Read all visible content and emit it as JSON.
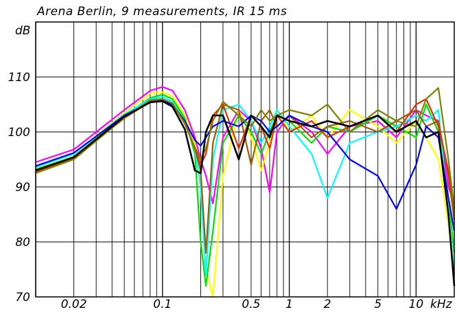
{
  "chart_data": {
    "type": "line",
    "title": "Arena Berlin, 9 measurements, IR 15 ms",
    "ylabel": "dB",
    "xunit": "kHz",
    "xscale": "log",
    "xlim": [
      0.01,
      20
    ],
    "ylim": [
      70,
      120
    ],
    "grid": true,
    "ytick_values": [
      70,
      80,
      90,
      100,
      110
    ],
    "ytick_labels": [
      "70",
      "80",
      "90",
      "100",
      "110"
    ],
    "xtick_values": [
      0.02,
      0.1,
      0.5,
      1,
      2,
      5,
      10
    ],
    "xtick_labels": [
      "0.02",
      "0.1",
      "0.5",
      "1",
      "2",
      "5",
      "10"
    ],
    "series_colors": [
      "#ff00ff",
      "#ffff00",
      "#00e000",
      "#00ffff",
      "#a05a00",
      "#e03000",
      "#0000ff",
      "#808000",
      "#000000"
    ],
    "series": [
      {
        "color": "#ff00ff",
        "x": [
          0.01,
          0.02,
          0.05,
          0.08,
          0.1,
          0.12,
          0.15,
          0.18,
          0.2,
          0.22,
          0.25,
          0.3,
          0.4,
          0.5,
          0.6,
          0.7,
          0.8,
          1,
          1.5,
          2,
          3,
          5,
          7,
          10,
          12,
          15,
          18,
          20
        ],
        "y": [
          94.5,
          96.8,
          104,
          107.5,
          108.2,
          107.5,
          104,
          99,
          95,
          92,
          87,
          99,
          104,
          102,
          97,
          89,
          100,
          103,
          100,
          96,
          101,
          102,
          99,
          104,
          103,
          102,
          90,
          87
        ]
      },
      {
        "color": "#ffff00",
        "x": [
          0.01,
          0.02,
          0.05,
          0.08,
          0.1,
          0.12,
          0.15,
          0.18,
          0.2,
          0.22,
          0.25,
          0.3,
          0.4,
          0.5,
          0.6,
          0.7,
          0.8,
          1,
          1.5,
          2,
          3,
          5,
          7,
          10,
          12,
          15,
          18,
          20
        ],
        "y": [
          93.5,
          96,
          103.5,
          107,
          107.2,
          106.5,
          103,
          98,
          92,
          75,
          70,
          92,
          104,
          99,
          93,
          98,
          104,
          100,
          103,
          99,
          104,
          101,
          98,
          102,
          99,
          95,
          83,
          75
        ]
      },
      {
        "color": "#00e000",
        "x": [
          0.01,
          0.02,
          0.05,
          0.08,
          0.1,
          0.12,
          0.15,
          0.18,
          0.2,
          0.22,
          0.25,
          0.3,
          0.4,
          0.5,
          0.6,
          0.7,
          0.8,
          1,
          1.5,
          2,
          3,
          5,
          7,
          10,
          12,
          15,
          18,
          20
        ],
        "y": [
          93.2,
          95.5,
          103,
          106.2,
          106.8,
          106,
          102.5,
          96,
          80,
          72,
          82,
          98,
          103,
          100,
          96,
          100,
          103,
          102,
          98,
          101,
          100,
          103,
          101,
          99,
          105,
          100,
          88,
          78
        ]
      },
      {
        "color": "#00ffff",
        "x": [
          0.01,
          0.02,
          0.05,
          0.08,
          0.1,
          0.12,
          0.15,
          0.18,
          0.2,
          0.22,
          0.25,
          0.3,
          0.4,
          0.5,
          0.6,
          0.7,
          0.8,
          1,
          1.5,
          2,
          3,
          5,
          7,
          10,
          12,
          15,
          18,
          20
        ],
        "y": [
          93.6,
          96,
          103.2,
          106,
          106.4,
          105.5,
          102,
          97,
          90,
          74,
          95,
          104,
          105,
          102,
          98,
          101,
          104,
          101,
          96,
          88,
          98,
          100,
          101,
          103,
          102,
          104,
          85,
          74
        ]
      },
      {
        "color": "#a05a00",
        "x": [
          0.01,
          0.02,
          0.05,
          0.08,
          0.1,
          0.12,
          0.15,
          0.18,
          0.2,
          0.22,
          0.25,
          0.3,
          0.4,
          0.5,
          0.6,
          0.7,
          0.8,
          1,
          1.5,
          2,
          3,
          5,
          7,
          10,
          12,
          15,
          18,
          20
        ],
        "y": [
          92.6,
          95.2,
          102.5,
          105.5,
          105.8,
          105,
          101.5,
          97,
          93,
          78,
          98,
          105,
          104,
          94,
          102,
          104,
          101,
          103,
          99,
          101,
          102,
          100,
          102,
          104,
          101,
          102,
          92,
          84
        ]
      },
      {
        "color": "#e03000",
        "x": [
          0.01,
          0.02,
          0.05,
          0.08,
          0.1,
          0.12,
          0.15,
          0.18,
          0.2,
          0.22,
          0.25,
          0.3,
          0.4,
          0.5,
          0.6,
          0.7,
          0.8,
          1,
          1.5,
          2,
          3,
          5,
          7,
          10,
          12,
          15,
          18,
          20
        ],
        "y": [
          92.8,
          95.4,
          102.8,
          105.6,
          105.9,
          105.1,
          101.8,
          97,
          94,
          96,
          103,
          105,
          97,
          103,
          101,
          97,
          103,
          100,
          102,
          99,
          101,
          103,
          100,
          105,
          106,
          101,
          93,
          86
        ]
      },
      {
        "color": "#0000ff",
        "x": [
          0.01,
          0.02,
          0.05,
          0.08,
          0.1,
          0.12,
          0.15,
          0.18,
          0.2,
          0.22,
          0.25,
          0.3,
          0.4,
          0.5,
          0.6,
          0.7,
          0.8,
          1,
          1.5,
          2,
          3,
          5,
          7,
          10,
          12,
          15,
          18,
          20
        ],
        "y": [
          93.8,
          96.2,
          103,
          105.4,
          105.7,
          105,
          102,
          98.5,
          97.5,
          99,
          101,
          102,
          101,
          103,
          102,
          100,
          101,
          103,
          101,
          100,
          95,
          92,
          86,
          94,
          101,
          99,
          88,
          82
        ]
      },
      {
        "color": "#808000",
        "x": [
          0.01,
          0.02,
          0.05,
          0.08,
          0.1,
          0.12,
          0.15,
          0.18,
          0.2,
          0.22,
          0.25,
          0.3,
          0.4,
          0.5,
          0.6,
          0.7,
          0.8,
          1,
          1.5,
          2,
          3,
          5,
          7,
          10,
          12,
          15,
          18,
          20
        ],
        "y": [
          92.5,
          95,
          102.6,
          105.8,
          106,
          105.2,
          101.6,
          97.2,
          95,
          97,
          102,
          105.5,
          103,
          101,
          104,
          102,
          103,
          104,
          103,
          105,
          100,
          104,
          102,
          101,
          106,
          108,
          95,
          86
        ]
      },
      {
        "color": "#000000",
        "x": [
          0.01,
          0.02,
          0.05,
          0.08,
          0.1,
          0.12,
          0.15,
          0.18,
          0.2,
          0.22,
          0.25,
          0.3,
          0.4,
          0.5,
          0.6,
          0.7,
          0.8,
          1,
          1.5,
          2,
          3,
          5,
          7,
          10,
          12,
          15,
          18,
          20
        ],
        "y": [
          93,
          95.4,
          102.8,
          105.4,
          105.6,
          104.6,
          100.5,
          93,
          92.5,
          100,
          103,
          103,
          95,
          103,
          101,
          99,
          103,
          102,
          101,
          102,
          101,
          103,
          100,
          102,
          99,
          100,
          85,
          72
        ]
      }
    ]
  }
}
